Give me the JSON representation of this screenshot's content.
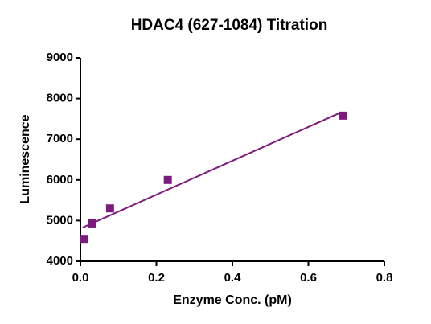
{
  "chart_data": {
    "type": "scatter",
    "title": "HDAC4 (627-1084) Titration",
    "x_label": "Enzyme Conc. (pM)",
    "y_label": "Luminescence",
    "color": "#7d1a7d",
    "x": [
      0.01,
      0.03,
      0.078,
      0.23,
      0.69
    ],
    "values": [
      4550,
      4930,
      5300,
      6000,
      7580
    ],
    "fit": {
      "x": [
        0.006,
        0.686
      ],
      "values": [
        4830,
        7660
      ]
    },
    "xlim": [
      0,
      0.8
    ],
    "xticks": [
      {
        "value": 0,
        "label": "0.0"
      },
      0.2,
      0.4,
      0.6,
      0.8
    ],
    "ylim": [
      4000,
      9000
    ],
    "yticks": [
      4000,
      5000,
      6000,
      7000,
      8000,
      9000
    ],
    "grid": false
  }
}
